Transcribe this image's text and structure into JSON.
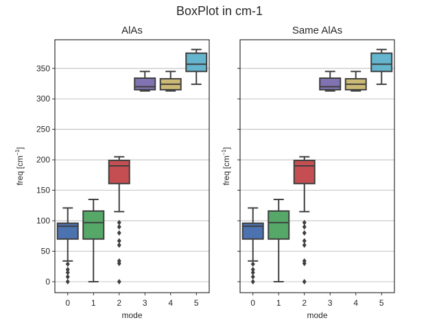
{
  "figure": {
    "suptitle": "BoxPlot in cm-1"
  },
  "chart_data": [
    {
      "type": "box",
      "title": "AlAs",
      "xlabel": "mode",
      "ylabel": "freq [cm",
      "ylabel_sup": "−1",
      "ylabel_suffix": "]",
      "ylim": [
        -18,
        397
      ],
      "yticks": [
        0,
        50,
        100,
        150,
        200,
        250,
        300,
        350
      ],
      "grid": "horizontal",
      "categories": [
        "0",
        "1",
        "2",
        "3",
        "4",
        "5"
      ],
      "colors": [
        "#4c72b0",
        "#55a868",
        "#c44e52",
        "#8172b2",
        "#ccb974",
        "#64b5cd"
      ],
      "boxes": [
        {
          "whislo": 34,
          "q1": 70,
          "med": 91,
          "q3": 96,
          "whishi": 121,
          "fliers": [
            0,
            8,
            15,
            20,
            29
          ]
        },
        {
          "whislo": 0,
          "q1": 70,
          "med": 97,
          "q3": 116,
          "whishi": 135,
          "fliers": []
        },
        {
          "whislo": 115,
          "q1": 161,
          "med": 190,
          "q3": 199,
          "whishi": 205,
          "fliers": [
            0,
            30,
            34,
            60,
            67,
            80,
            90,
            97
          ]
        },
        {
          "whislo": 313,
          "q1": 315,
          "med": 320,
          "q3": 334,
          "whishi": 345,
          "fliers": []
        },
        {
          "whislo": 313,
          "q1": 315,
          "med": 324,
          "q3": 333,
          "whishi": 345,
          "fliers": []
        },
        {
          "whislo": 324,
          "q1": 345,
          "med": 357,
          "q3": 375,
          "whishi": 381,
          "fliers": []
        }
      ]
    },
    {
      "type": "box",
      "title": "Same AlAs",
      "xlabel": "mode",
      "ylabel": "freq [cm",
      "ylabel_sup": "−1",
      "ylabel_suffix": "]",
      "ylim": [
        -18,
        397
      ],
      "yticks": [
        0,
        50,
        100,
        150,
        200,
        250,
        300,
        350
      ],
      "grid": "horizontal",
      "categories": [
        "0",
        "1",
        "2",
        "3",
        "4",
        "5"
      ],
      "colors": [
        "#4c72b0",
        "#55a868",
        "#c44e52",
        "#8172b2",
        "#ccb974",
        "#64b5cd"
      ],
      "boxes": [
        {
          "whislo": 34,
          "q1": 70,
          "med": 91,
          "q3": 96,
          "whishi": 121,
          "fliers": [
            0,
            8,
            15,
            20,
            29
          ]
        },
        {
          "whislo": 0,
          "q1": 70,
          "med": 97,
          "q3": 116,
          "whishi": 135,
          "fliers": []
        },
        {
          "whislo": 115,
          "q1": 161,
          "med": 190,
          "q3": 199,
          "whishi": 205,
          "fliers": [
            0,
            30,
            34,
            60,
            67,
            80,
            90,
            97
          ]
        },
        {
          "whislo": 313,
          "q1": 315,
          "med": 320,
          "q3": 334,
          "whishi": 345,
          "fliers": []
        },
        {
          "whislo": 313,
          "q1": 315,
          "med": 324,
          "q3": 333,
          "whishi": 345,
          "fliers": []
        },
        {
          "whislo": 324,
          "q1": 345,
          "med": 357,
          "q3": 375,
          "whishi": 381,
          "fliers": []
        }
      ]
    }
  ]
}
